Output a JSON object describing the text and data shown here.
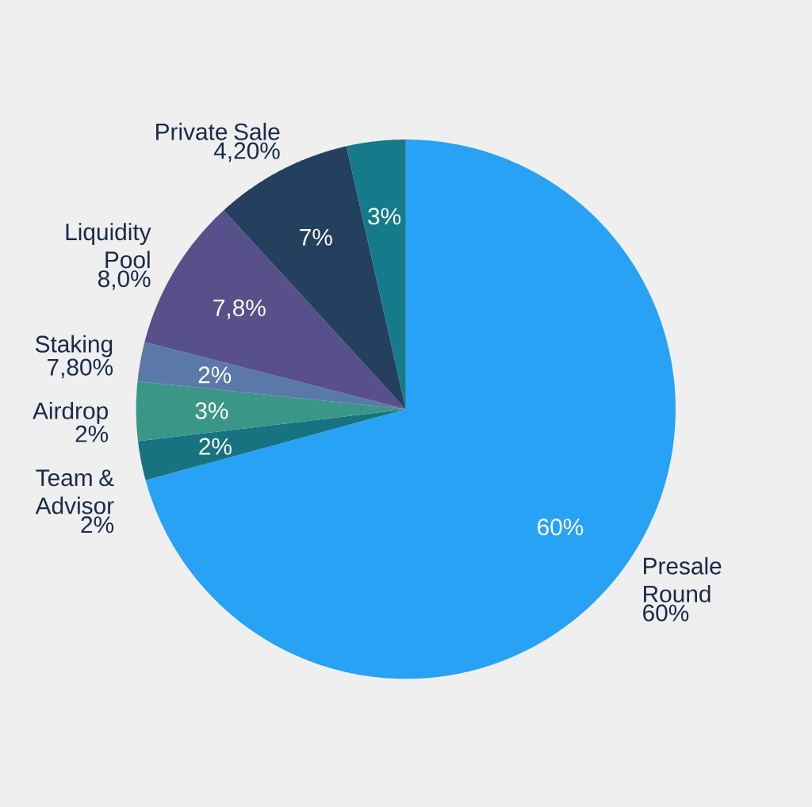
{
  "chart_data": {
    "type": "pie",
    "categories": [
      "Presale Round",
      "Team & Advisor",
      "Airdrop",
      "Staking",
      "Liquidity Pool",
      "Private Sale",
      null
    ],
    "values": [
      60,
      2,
      3,
      2,
      7.8,
      7,
      3
    ],
    "colors": [
      "#28a2f4",
      "#16737f",
      "#3a9788",
      "#5a79a9",
      "#57508b",
      "#25405f",
      "#157a8a"
    ],
    "value_labels": [
      "60%",
      "2%",
      "3%",
      "2%",
      "7,8%",
      "7%",
      "3%"
    ],
    "annotations": [
      {
        "text": "60%",
        "x": "Presale Round"
      },
      {
        "text": "2%",
        "x": "Team & Advisor"
      },
      {
        "text": "2%",
        "x": "Airdrop"
      },
      {
        "text": "7,80%",
        "x": "Staking"
      },
      {
        "text": "8,0%",
        "x": "Liquidity Pool"
      },
      {
        "text": "4,20%",
        "x": "Private Sale"
      }
    ]
  }
}
